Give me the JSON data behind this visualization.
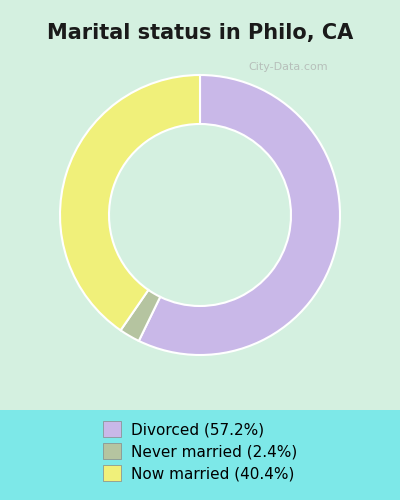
{
  "title": "Marital status in Philo, CA",
  "slices": [
    57.2,
    2.4,
    40.4
  ],
  "labels": [
    "Divorced (57.2%)",
    "Never married (2.4%)",
    "Now married (40.4%)"
  ],
  "colors": [
    "#c9b8e8",
    "#b5c4a0",
    "#f0f07a"
  ],
  "background_outer": "#7de8e8",
  "background_inner": "#d4f0e0",
  "chart_bg": "#d4f0e0",
  "donut_width": 0.35,
  "start_angle": 90,
  "title_fontsize": 15,
  "legend_fontsize": 11
}
